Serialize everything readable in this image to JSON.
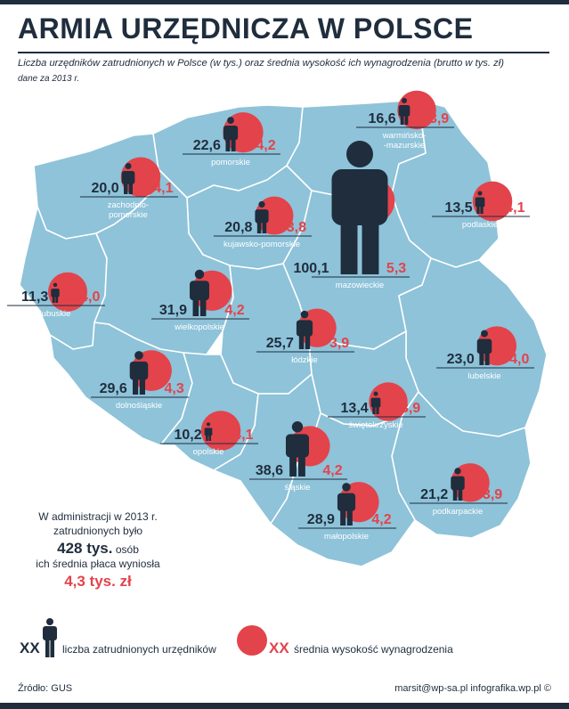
{
  "title": "ARMIA URZĘDNICZA W POLSCE",
  "subtitle": "Liczba urzędników zatrudnionych w Polsce (w tys.) oraz średnia wysokość ich wynagrodzenia (brutto w tys. zł)",
  "year_note": "dane za 2013 r.",
  "colors": {
    "map": "#8ec3d9",
    "borders": "#ffffff",
    "employees": "#1f2d3d",
    "salary": "#e3434b"
  },
  "regions": [
    {
      "name": "zachodnio-\npomorskie",
      "employees": "20,0",
      "salary": "4,1"
    },
    {
      "name": "pomorskie",
      "employees": "22,6",
      "salary": "4,2"
    },
    {
      "name": "warmińsko-\n-mazurskie",
      "employees": "16,6",
      "salary": "3,9"
    },
    {
      "name": "kujawsko-pomorskie",
      "employees": "20,8",
      "salary": "3,8"
    },
    {
      "name": "podlaskie",
      "employees": "13,5",
      "salary": "4,1"
    },
    {
      "name": "lubuskie",
      "employees": "11,3",
      "salary": "4,0"
    },
    {
      "name": "wielkopolskie",
      "employees": "31,9",
      "salary": "4,2"
    },
    {
      "name": "mazowieckie",
      "employees": "100,1",
      "salary": "5,3"
    },
    {
      "name": "łódzkie",
      "employees": "25,7",
      "salary": "3,9"
    },
    {
      "name": "lubelskie",
      "employees": "23,0",
      "salary": "4,0"
    },
    {
      "name": "dolnośląskie",
      "employees": "29,6",
      "salary": "4,3"
    },
    {
      "name": "świętokrzyskie",
      "employees": "13,4",
      "salary": "3,9"
    },
    {
      "name": "opolskie",
      "employees": "10,2",
      "salary": "4,1"
    },
    {
      "name": "śląskie",
      "employees": "38,6",
      "salary": "4,2"
    },
    {
      "name": "podkarpackie",
      "employees": "21,2",
      "salary": "3,9"
    },
    {
      "name": "małopolskie",
      "employees": "28,9",
      "salary": "4,2"
    }
  ],
  "summary": {
    "line1": "W administracji w 2013 r.",
    "line2": "zatrudnionych było",
    "total": "428 tys.",
    "unit": "osób",
    "line3": "ich średnia płaca wyniosła",
    "avg_salary": "4,3 tys. zł"
  },
  "legend": {
    "placeholder": "XX",
    "employees_label": "liczba zatrudnionych urzędników",
    "salary_label": "średnia wysokość wynagrodzenia"
  },
  "source": "Źródło: GUS",
  "credit": "marsit@wp-sa.pl infografika.wp.pl ©"
}
